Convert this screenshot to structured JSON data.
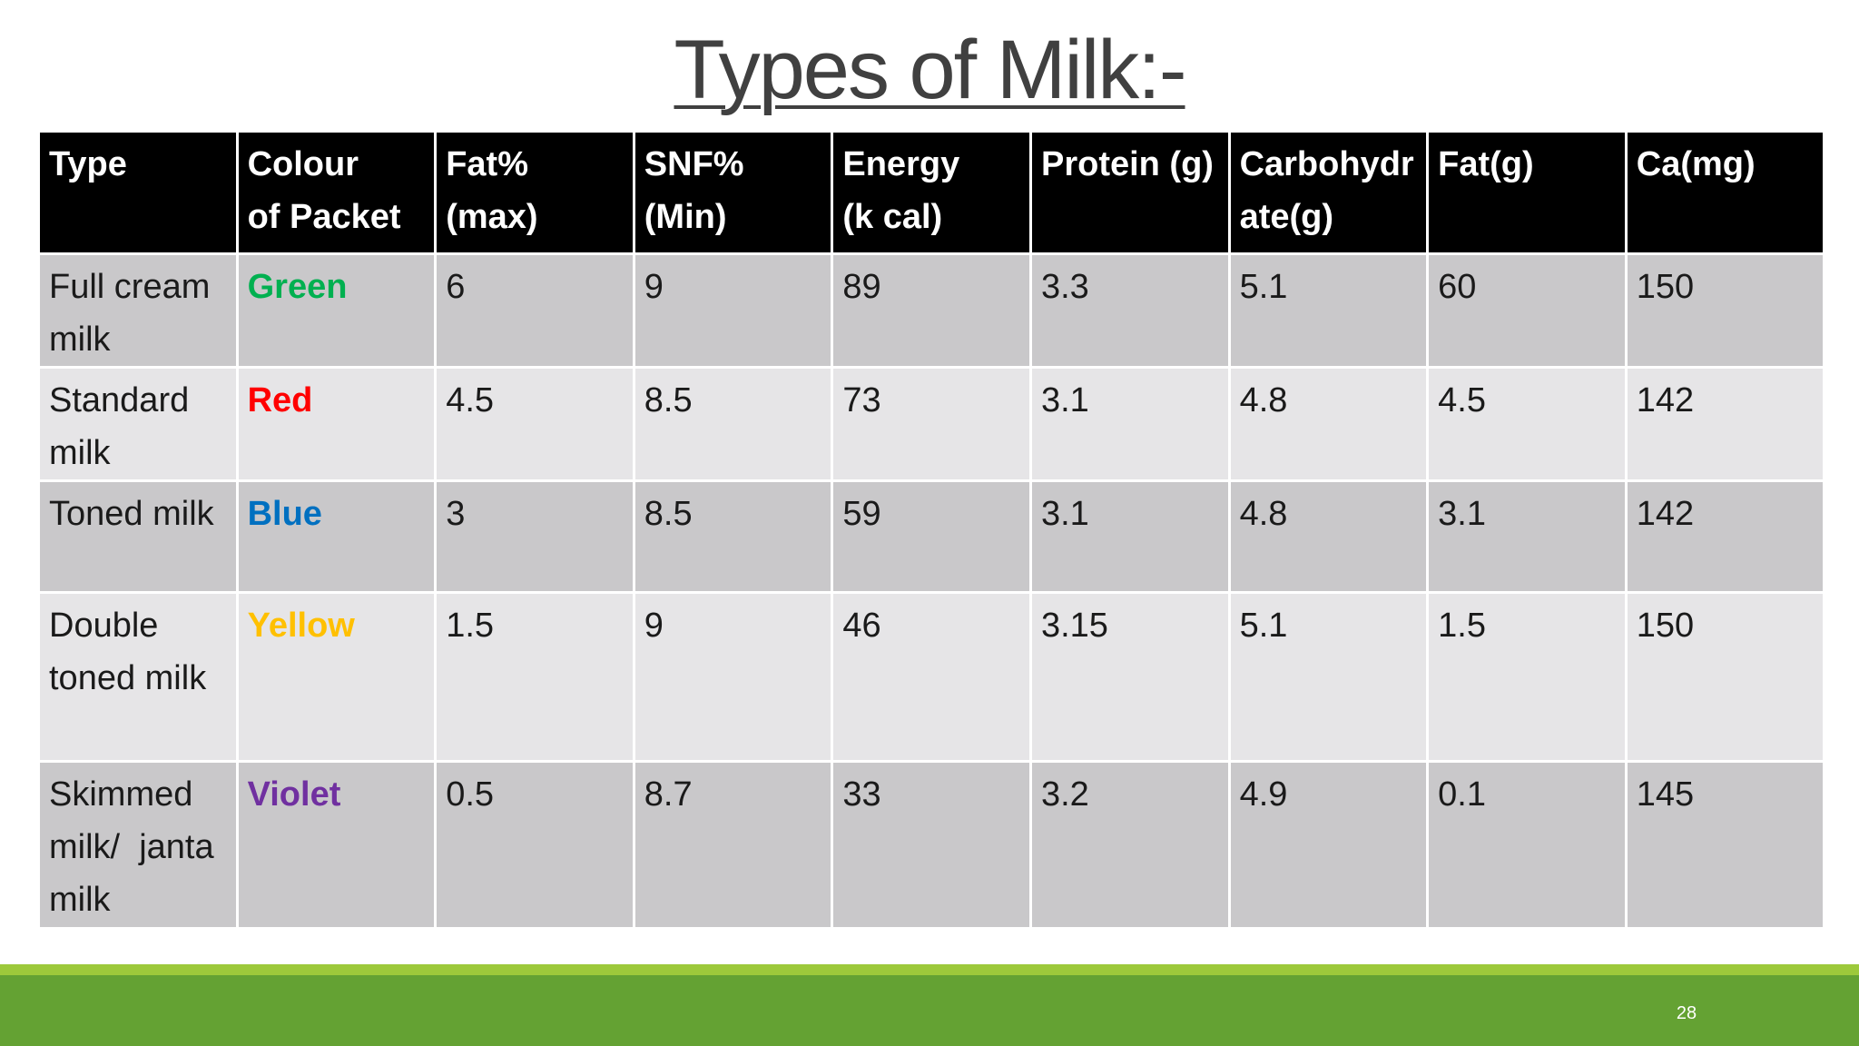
{
  "slide": {
    "title": "Types of Milk:-",
    "page_number": "28"
  },
  "table": {
    "headers": [
      "Type",
      "Colour    of Packet",
      "Fat% (max)",
      "SNF% (Min)",
      "Energy    (k cal)",
      "Protein (g)",
      "Carbohydrate(g)",
      "Fat(g)",
      "Ca(mg)"
    ],
    "rows": [
      {
        "cells": [
          "Full cream milk",
          "Green",
          "6",
          "9",
          "89",
          "3.3",
          "5.1",
          "60",
          "150"
        ],
        "colour_hex": "#00b050"
      },
      {
        "cells": [
          "Standard milk",
          "Red",
          "4.5",
          "8.5",
          "73",
          "3.1",
          "4.8",
          "4.5",
          "142"
        ],
        "colour_hex": "#ff0000"
      },
      {
        "cells": [
          "Toned milk",
          "Blue",
          "3",
          "8.5",
          "59",
          "3.1",
          "4.8",
          "3.1",
          "142"
        ],
        "colour_hex": "#0070c0"
      },
      {
        "cells": [
          "Double toned milk",
          "Yellow",
          "1.5",
          "9",
          "46",
          "3.15",
          "5.1",
          "1.5",
          "150"
        ],
        "colour_hex": "#ffc000"
      },
      {
        "cells": [
          "Skimmed milk/  janta milk",
          "Violet",
          "0.5",
          "8.7",
          "33",
          "3.2",
          "4.9",
          "0.1",
          "145"
        ],
        "colour_hex": "#7030a0"
      }
    ]
  },
  "theme": {
    "header_bg": "#000000",
    "row_odd_bg": "#c9c8ca",
    "row_even_bg": "#e6e5e7",
    "footer_green": "#64a233",
    "footer_light_green": "#9dc93b"
  }
}
